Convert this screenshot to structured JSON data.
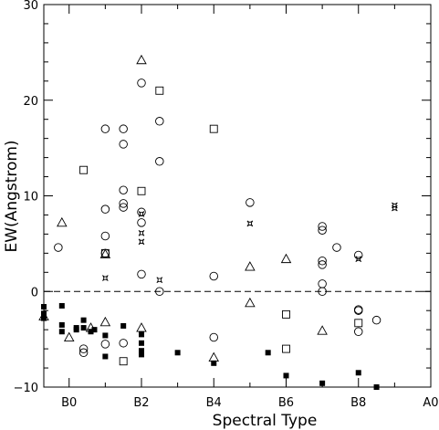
{
  "chart_data": {
    "type": "scatter",
    "title": "",
    "xlabel": "Spectral Type",
    "ylabel": "EW(Angstrom)",
    "xlim": [
      -0.7,
      10.0
    ],
    "ylim": [
      -10,
      30
    ],
    "x_ticks": [
      {
        "value": 0,
        "label": "B0"
      },
      {
        "value": 2,
        "label": "B2"
      },
      {
        "value": 4,
        "label": "B4"
      },
      {
        "value": 6,
        "label": "B6"
      },
      {
        "value": 8,
        "label": "B8"
      },
      {
        "value": 10,
        "label": "A0"
      }
    ],
    "y_ticks": [
      {
        "value": -10,
        "label": "−10"
      },
      {
        "value": 0,
        "label": "0"
      },
      {
        "value": 10,
        "label": "10"
      },
      {
        "value": 20,
        "label": "20"
      },
      {
        "value": 30,
        "label": "30"
      }
    ],
    "reference_line": {
      "y": 0,
      "style": "dashed"
    },
    "grid": false,
    "legend": "none",
    "series": [
      {
        "marker": "open-circle",
        "points": [
          [
            -0.3,
            4.6
          ],
          [
            0.4,
            -6.0
          ],
          [
            0.4,
            -6.4
          ],
          [
            1.0,
            17.0
          ],
          [
            1.0,
            8.6
          ],
          [
            1.0,
            5.8
          ],
          [
            1.0,
            4.0
          ],
          [
            1.0,
            -5.5
          ],
          [
            1.5,
            17.0
          ],
          [
            1.5,
            15.4
          ],
          [
            1.5,
            10.6
          ],
          [
            1.5,
            9.2
          ],
          [
            1.5,
            8.8
          ],
          [
            1.5,
            -5.4
          ],
          [
            2.0,
            21.8
          ],
          [
            2.0,
            8.3
          ],
          [
            2.0,
            7.2
          ],
          [
            2.0,
            1.8
          ],
          [
            2.5,
            17.8
          ],
          [
            2.5,
            13.6
          ],
          [
            2.5,
            0.0
          ],
          [
            4.0,
            1.6
          ],
          [
            4.0,
            -4.8
          ],
          [
            5.0,
            9.3
          ],
          [
            7.0,
            6.8
          ],
          [
            7.0,
            6.4
          ],
          [
            7.0,
            3.2
          ],
          [
            7.0,
            2.8
          ],
          [
            7.0,
            0.8
          ],
          [
            7.0,
            0.0
          ],
          [
            7.4,
            4.6
          ],
          [
            8.0,
            3.8
          ],
          [
            8.0,
            -1.9
          ],
          [
            8.0,
            -2.0
          ],
          [
            8.0,
            -4.2
          ],
          [
            8.5,
            -3.0
          ]
        ]
      },
      {
        "marker": "open-square",
        "points": [
          [
            0.4,
            12.7
          ],
          [
            1.0,
            4.0
          ],
          [
            1.5,
            -7.3
          ],
          [
            2.0,
            10.5
          ],
          [
            2.5,
            21.0
          ],
          [
            4.0,
            17.0
          ],
          [
            6.0,
            -2.4
          ],
          [
            6.0,
            -6.0
          ],
          [
            8.0,
            -3.3
          ]
        ]
      },
      {
        "marker": "open-triangle",
        "points": [
          [
            -0.7,
            -2.6
          ],
          [
            -0.2,
            7.2
          ],
          [
            0.0,
            -4.8
          ],
          [
            0.6,
            -3.8
          ],
          [
            1.0,
            3.9
          ],
          [
            1.0,
            -3.2
          ],
          [
            2.0,
            24.2
          ],
          [
            2.0,
            -3.8
          ],
          [
            4.0,
            -6.9
          ],
          [
            5.0,
            2.6
          ],
          [
            5.0,
            -1.2
          ],
          [
            6.0,
            3.4
          ],
          [
            7.0,
            -4.1
          ]
        ]
      },
      {
        "marker": "star",
        "points": [
          [
            1.0,
            1.4
          ],
          [
            2.0,
            8.1
          ],
          [
            2.0,
            6.1
          ],
          [
            2.0,
            5.2
          ],
          [
            2.5,
            1.2
          ],
          [
            5.0,
            7.1
          ],
          [
            8.0,
            3.4
          ],
          [
            9.0,
            9.0
          ],
          [
            9.0,
            8.7
          ]
        ]
      },
      {
        "marker": "filled-square",
        "points": [
          [
            -0.7,
            -1.6
          ],
          [
            -0.7,
            -2.3
          ],
          [
            -0.7,
            -2.8
          ],
          [
            -0.2,
            -1.5
          ],
          [
            -0.2,
            -3.5
          ],
          [
            -0.2,
            -4.2
          ],
          [
            0.2,
            -3.8
          ],
          [
            0.2,
            -4.0
          ],
          [
            0.4,
            -3.0
          ],
          [
            0.4,
            -3.8
          ],
          [
            0.6,
            -4.2
          ],
          [
            0.7,
            -4.0
          ],
          [
            1.0,
            -4.6
          ],
          [
            1.0,
            -6.8
          ],
          [
            1.5,
            -3.6
          ],
          [
            2.0,
            -4.5
          ],
          [
            2.0,
            -5.4
          ],
          [
            2.0,
            -6.2
          ],
          [
            2.0,
            -6.6
          ],
          [
            3.0,
            -6.4
          ],
          [
            4.0,
            -7.5
          ],
          [
            5.5,
            -6.4
          ],
          [
            6.0,
            -8.8
          ],
          [
            7.0,
            -9.6
          ],
          [
            8.0,
            -8.5
          ],
          [
            8.5,
            -10.0
          ]
        ]
      }
    ]
  }
}
